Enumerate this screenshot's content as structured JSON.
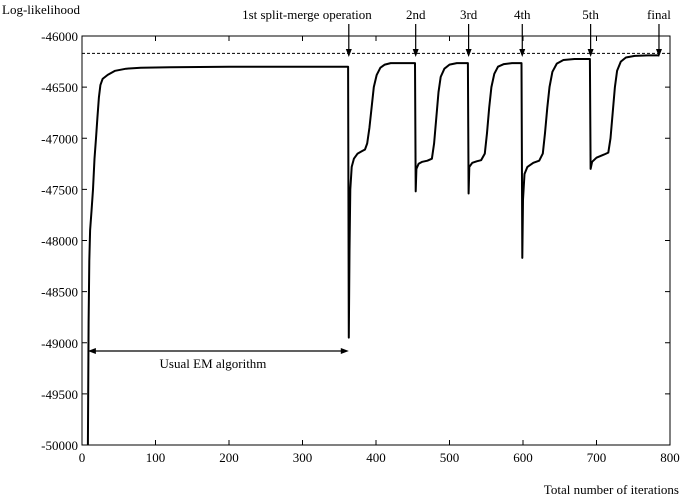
{
  "chart_data": {
    "type": "line",
    "title": "",
    "xlabel": "Total number of iterations",
    "ylabel": "Log-likelihood",
    "xlim": [
      0,
      800
    ],
    "ylim": [
      -50000,
      -46000
    ],
    "xticks": [
      0,
      100,
      200,
      300,
      400,
      500,
      600,
      700,
      800
    ],
    "yticks": [
      -46000,
      -46500,
      -47000,
      -47500,
      -48000,
      -48500,
      -49000,
      -49500,
      -50000
    ],
    "grid": false,
    "series": [
      {
        "style": "solid",
        "points": [
          [
            8,
            -50000
          ],
          [
            9,
            -48800
          ],
          [
            10,
            -48200
          ],
          [
            11,
            -47900
          ],
          [
            13,
            -47700
          ],
          [
            15,
            -47500
          ],
          [
            17,
            -47200
          ],
          [
            19,
            -47000
          ],
          [
            21,
            -46800
          ],
          [
            23,
            -46600
          ],
          [
            25,
            -46480
          ],
          [
            28,
            -46420
          ],
          [
            35,
            -46380
          ],
          [
            45,
            -46340
          ],
          [
            60,
            -46320
          ],
          [
            80,
            -46310
          ],
          [
            120,
            -46305
          ],
          [
            200,
            -46300
          ],
          [
            300,
            -46300
          ],
          [
            362,
            -46300
          ],
          [
            363,
            -48950
          ],
          [
            364,
            -48100
          ],
          [
            365,
            -47500
          ],
          [
            367,
            -47280
          ],
          [
            370,
            -47200
          ],
          [
            375,
            -47150
          ],
          [
            380,
            -47130
          ],
          [
            385,
            -47110
          ],
          [
            388,
            -47050
          ],
          [
            391,
            -46900
          ],
          [
            394,
            -46700
          ],
          [
            397,
            -46500
          ],
          [
            401,
            -46380
          ],
          [
            406,
            -46310
          ],
          [
            412,
            -46280
          ],
          [
            420,
            -46265
          ],
          [
            440,
            -46265
          ],
          [
            453,
            -46265
          ],
          [
            454,
            -47520
          ],
          [
            455,
            -47300
          ],
          [
            458,
            -47250
          ],
          [
            463,
            -47230
          ],
          [
            470,
            -47220
          ],
          [
            476,
            -47200
          ],
          [
            479,
            -47050
          ],
          [
            482,
            -46800
          ],
          [
            485,
            -46550
          ],
          [
            488,
            -46400
          ],
          [
            493,
            -46320
          ],
          [
            500,
            -46280
          ],
          [
            510,
            -46265
          ],
          [
            525,
            -46265
          ],
          [
            526,
            -47540
          ],
          [
            527,
            -47280
          ],
          [
            531,
            -47240
          ],
          [
            537,
            -47225
          ],
          [
            543,
            -47215
          ],
          [
            548,
            -47150
          ],
          [
            551,
            -46950
          ],
          [
            554,
            -46700
          ],
          [
            557,
            -46500
          ],
          [
            561,
            -46370
          ],
          [
            566,
            -46300
          ],
          [
            574,
            -46275
          ],
          [
            585,
            -46265
          ],
          [
            598,
            -46265
          ],
          [
            599,
            -48170
          ],
          [
            600,
            -47600
          ],
          [
            602,
            -47350
          ],
          [
            606,
            -47280
          ],
          [
            614,
            -47240
          ],
          [
            622,
            -47220
          ],
          [
            627,
            -47150
          ],
          [
            630,
            -46950
          ],
          [
            633,
            -46700
          ],
          [
            636,
            -46500
          ],
          [
            640,
            -46350
          ],
          [
            646,
            -46270
          ],
          [
            655,
            -46235
          ],
          [
            670,
            -46225
          ],
          [
            691,
            -46225
          ],
          [
            692,
            -47300
          ],
          [
            694,
            -47230
          ],
          [
            700,
            -47190
          ],
          [
            710,
            -47160
          ],
          [
            716,
            -47140
          ],
          [
            719,
            -47000
          ],
          [
            722,
            -46750
          ],
          [
            725,
            -46500
          ],
          [
            728,
            -46340
          ],
          [
            733,
            -46250
          ],
          [
            740,
            -46210
          ],
          [
            752,
            -46195
          ],
          [
            770,
            -46190
          ],
          [
            785,
            -46190
          ]
        ]
      },
      {
        "style": "dashed",
        "points": [
          [
            0,
            -46170
          ],
          [
            800,
            -46170
          ]
        ]
      }
    ],
    "annotations": [
      {
        "label": "1st split-merge operation",
        "x": 363
      },
      {
        "label": "2nd",
        "x": 454
      },
      {
        "label": "3rd",
        "x": 526
      },
      {
        "label": "4th",
        "x": 599
      },
      {
        "label": "5th",
        "x": 692
      },
      {
        "label": "final",
        "x": 785
      }
    ],
    "range_annotation": {
      "label": "Usual EM algorithm",
      "x_start": 8,
      "x_end": 363
    }
  }
}
